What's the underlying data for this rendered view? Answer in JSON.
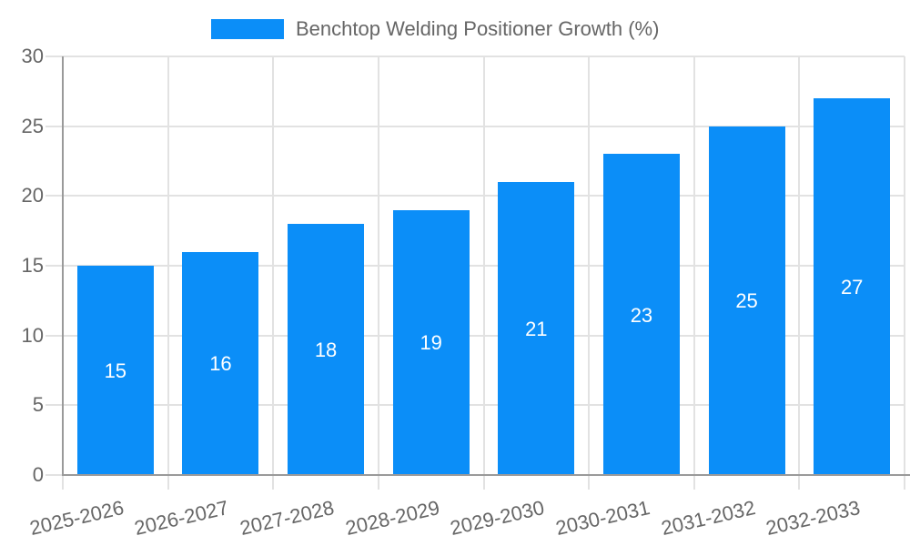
{
  "legend": {
    "position": "top-center",
    "items": [
      {
        "label": "Benchtop Welding Positioner Growth (%)",
        "color": "#0b8ef8"
      }
    ]
  },
  "chart_data": {
    "type": "bar",
    "title": "Benchtop Welding Positioner Growth (%)",
    "categories": [
      "2025-2026",
      "2026-2027",
      "2027-2028",
      "2028-2029",
      "2029-2030",
      "2030-2031",
      "2031-2032",
      "2032-2033"
    ],
    "series": [
      {
        "name": "Benchtop Welding Positioner Growth (%)",
        "color": "#0b8ef8",
        "values": [
          15,
          16,
          18,
          19,
          21,
          23,
          25,
          27
        ]
      }
    ],
    "value_labels": {
      "position": "inside-center",
      "color": "#ffffff"
    },
    "xlabel": "",
    "ylabel": "",
    "axes": {
      "y": {
        "min": 0,
        "max": 30,
        "ticks": [
          0,
          5,
          10,
          15,
          20,
          25,
          30
        ]
      },
      "x": {
        "tick_rotation_deg": -13
      }
    },
    "grid": {
      "horizontal": true,
      "vertical": true
    },
    "legend_position": "top"
  },
  "colors": {
    "bar": "#0b8ef8",
    "grid": "#e2e2e2",
    "axis": "#9a9a9a",
    "tick_text": "#666666",
    "value_label": "#ffffff",
    "background": "#ffffff"
  }
}
